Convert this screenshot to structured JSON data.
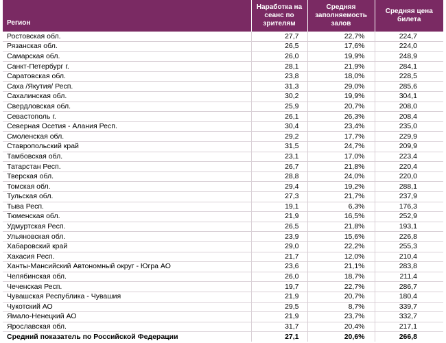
{
  "columns": {
    "region": "Регион",
    "sessions": "Наработка на сеанс по зрителям",
    "occupancy": "Средняя заполняемость залов",
    "price": "Средняя цена билета"
  },
  "colors": {
    "header_bg": "#7a2a63",
    "header_text": "#ffffff"
  },
  "rows": [
    [
      "Ростовская обл.",
      "27,7",
      "22,7%",
      "224,7"
    ],
    [
      "Рязанская обл.",
      "26,5",
      "17,6%",
      "224,0"
    ],
    [
      "Самарская обл.",
      "26,0",
      "19,9%",
      "248,9"
    ],
    [
      "Санкт-Петербург г.",
      "28,1",
      "21,9%",
      "284,1"
    ],
    [
      "Саратовская обл.",
      "23,8",
      "18,0%",
      "228,5"
    ],
    [
      "Саха /Якутия/ Респ.",
      "31,3",
      "29,0%",
      "285,6"
    ],
    [
      "Сахалинская обл.",
      "30,2",
      "19,9%",
      "304,1"
    ],
    [
      "Свердловская обл.",
      "25,9",
      "20,7%",
      "208,0"
    ],
    [
      "Севастополь г.",
      "26,1",
      "26,3%",
      "208,4"
    ],
    [
      "Северная Осетия - Алания Респ.",
      "30,4",
      "23,4%",
      "235,0"
    ],
    [
      "Смоленская обл.",
      "29,2",
      "17,7%",
      "229,9"
    ],
    [
      "Ставропольский край",
      "31,5",
      "24,7%",
      "209,9"
    ],
    [
      "Тамбовская обл.",
      "23,1",
      "17,0%",
      "223,4"
    ],
    [
      "Татарстан Респ.",
      "26,7",
      "21,8%",
      "220,4"
    ],
    [
      "Тверская обл.",
      "28,8",
      "24,0%",
      "220,0"
    ],
    [
      "Томская обл.",
      "29,4",
      "19,2%",
      "288,1"
    ],
    [
      "Тульская обл.",
      "27,3",
      "21,7%",
      "237,9"
    ],
    [
      "Тыва Респ.",
      "19,1",
      "6,3%",
      "176,3"
    ],
    [
      "Тюменская обл.",
      "21,9",
      "16,5%",
      "252,9"
    ],
    [
      "Удмуртская Респ.",
      "26,5",
      "21,8%",
      "193,1"
    ],
    [
      "Ульяновская обл.",
      "23,9",
      "15,6%",
      "226,8"
    ],
    [
      "Хабаровский край",
      "29,0",
      "22,2%",
      "255,3"
    ],
    [
      "Хакасия Респ.",
      "21,7",
      "12,0%",
      "210,4"
    ],
    [
      "Ханты-Мансийский Автономный округ - Югра АО",
      "23,6",
      "21,1%",
      "283,8"
    ],
    [
      "Челябинская обл.",
      "26,0",
      "18,7%",
      "211,4"
    ],
    [
      "Чеченская Респ.",
      "19,7",
      "22,7%",
      "286,7"
    ],
    [
      "Чувашская Республика - Чувашия",
      "21,9",
      "20,7%",
      "180,4"
    ],
    [
      "Чукотский АО",
      "29,5",
      "8,7%",
      "339,7"
    ],
    [
      "Ямало-Ненецкий АО",
      "21,9",
      "23,7%",
      "332,7"
    ],
    [
      "Ярославская обл.",
      "31,7",
      "20,4%",
      "217,1"
    ]
  ],
  "total": [
    "Средний показатель по Российской Федерации",
    "27,1",
    "20,6%",
    "266,8"
  ]
}
